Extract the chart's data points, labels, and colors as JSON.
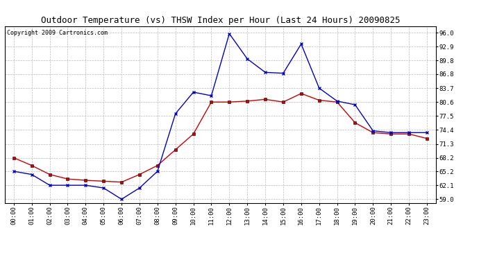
{
  "title": "Outdoor Temperature (vs) THSW Index per Hour (Last 24 Hours) 20090825",
  "copyright": "Copyright 2009 Cartronics.com",
  "hours": [
    "00:00",
    "01:00",
    "02:00",
    "03:00",
    "04:00",
    "05:00",
    "06:00",
    "07:00",
    "08:00",
    "09:00",
    "10:00",
    "11:00",
    "12:00",
    "13:00",
    "14:00",
    "15:00",
    "16:00",
    "17:00",
    "18:00",
    "19:00",
    "20:00",
    "21:00",
    "22:00",
    "23:00"
  ],
  "temp_red": [
    68.2,
    66.5,
    64.5,
    63.5,
    63.2,
    63.0,
    62.8,
    64.5,
    66.5,
    70.0,
    73.5,
    80.6,
    80.6,
    80.8,
    81.2,
    80.6,
    82.5,
    81.0,
    80.6,
    76.0,
    73.8,
    73.5,
    73.5,
    72.5
  ],
  "thsw_blue": [
    65.2,
    64.5,
    62.1,
    62.1,
    62.1,
    61.5,
    59.0,
    61.5,
    65.2,
    78.0,
    82.8,
    82.0,
    95.8,
    90.2,
    87.2,
    87.0,
    93.5,
    83.7,
    80.8,
    80.0,
    74.2,
    73.8,
    73.8,
    73.8
  ],
  "y_ticks": [
    59.0,
    62.1,
    65.2,
    68.2,
    71.3,
    74.4,
    77.5,
    80.6,
    83.7,
    86.8,
    89.8,
    92.9,
    96.0
  ],
  "ylim": [
    58.2,
    97.5
  ],
  "bg_color": "#ffffff",
  "plot_bg": "#ffffff",
  "grid_color": "#bbbbbb",
  "line_color_red": "#cc0000",
  "line_color_blue": "#0000cc",
  "marker_color": "#000000",
  "title_fontsize": 9,
  "copyright_fontsize": 6,
  "tick_fontsize": 6.5
}
